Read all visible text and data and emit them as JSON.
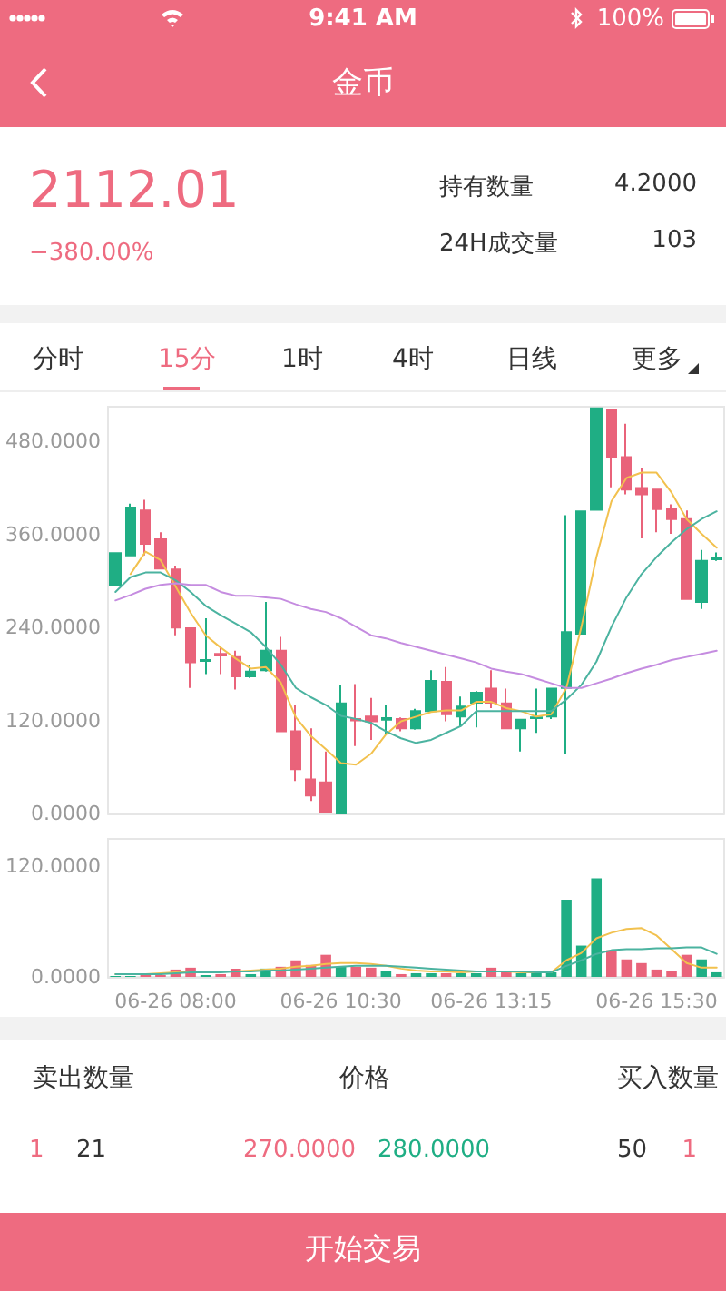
{
  "chart_data": [
    {
      "type": "other",
      "title": "金币",
      "annotations": [
        "9:41 AM",
        "100%",
        "2112.01",
        "−380.00%",
        "持有数量",
        "4.2000",
        "24H成交量",
        "103",
        "分时",
        "15分",
        "1时",
        "4时",
        "日线",
        "更多"
      ]
    },
    {
      "type": "candlestick",
      "tick_labels": "y",
      "grid": false,
      "marker": "none",
      "line_style": "solid",
      "ohlc": [
        [
          295,
          336,
          295,
          336
        ],
        [
          333,
          400,
          333,
          395
        ],
        [
          391,
          405,
          333,
          348
        ],
        [
          354,
          363,
          316,
          316
        ],
        [
          315,
          320,
          230,
          240
        ],
        [
          239,
          239,
          162,
          195
        ],
        [
          197,
          252,
          180,
          198
        ],
        [
          206,
          215,
          180,
          204
        ],
        [
          202,
          210,
          160,
          177
        ],
        [
          177,
          192,
          175,
          183
        ],
        [
          185,
          273,
          183,
          210
        ],
        [
          210,
          228,
          106,
          106
        ],
        [
          106,
          140,
          42,
          57
        ],
        [
          44,
          110,
          16,
          23
        ],
        [
          40,
          80,
          0,
          2
        ],
        [
          0,
          166,
          0,
          142
        ],
        [
          122,
          167,
          87,
          120
        ],
        [
          125,
          149,
          95,
          119
        ],
        [
          121,
          140,
          102,
          123
        ],
        [
          122,
          124,
          106,
          110
        ],
        [
          110,
          135,
          108,
          132
        ],
        [
          132,
          185,
          132,
          171
        ],
        [
          170,
          189,
          119,
          128
        ],
        [
          125,
          151,
          112,
          138
        ],
        [
          143,
          158,
          111,
          156
        ],
        [
          161,
          185,
          136,
          143
        ],
        [
          142,
          161,
          110,
          110
        ],
        [
          110,
          122,
          80,
          121
        ],
        [
          123,
          161,
          104,
          124
        ],
        [
          125,
          161,
          122,
          161
        ],
        [
          162,
          385,
          77,
          234
        ],
        [
          232,
          390,
          232,
          390
        ],
        [
          392,
          523,
          392,
          523
        ],
        [
          521,
          521,
          421,
          460
        ],
        [
          460,
          503,
          412,
          418
        ],
        [
          420,
          446,
          355,
          412
        ],
        [
          418,
          418,
          363,
          393
        ],
        [
          393,
          399,
          361,
          380
        ],
        [
          380,
          391,
          277,
          277
        ],
        [
          273,
          340,
          264,
          326
        ],
        [
          328,
          337,
          326,
          330
        ]
      ],
      "colors": [
        "#1fae84",
        "#1fae84",
        "#e9637a",
        "#e9637a",
        "#e9637a",
        "#e9637a",
        "#1fae84",
        "#e9637a",
        "#e9637a",
        "#1fae84",
        "#1fae84",
        "#e9637a",
        "#e9637a",
        "#e9637a",
        "#e9637a",
        "#1fae84",
        "#e9637a",
        "#e9637a",
        "#1fae84",
        "#e9637a",
        "#1fae84",
        "#1fae84",
        "#e9637a",
        "#1fae84",
        "#1fae84",
        "#e9637a",
        "#e9637a",
        "#1fae84",
        "#1fae84",
        "#1fae84",
        "#1fae84",
        "#1fae84",
        "#1fae84",
        "#e9637a",
        "#e9637a",
        "#e9637a",
        "#e9637a",
        "#e9637a",
        "#e9637a",
        "#1fae84",
        "#1fae84"
      ],
      "ylim": [
        0,
        525
      ],
      "yticks": [
        {
          "value": 0,
          "label": "0.0000"
        },
        {
          "value": 120,
          "label": "120.0000"
        },
        {
          "value": 240,
          "label": "240.0000"
        },
        {
          "value": 360,
          "label": "360.0000"
        },
        {
          "value": 480,
          "label": "480.0000"
        }
      ],
      "series": [
        {
          "type": "line",
          "color": "#f2c14e",
          "values": [
            null,
            309,
            338,
            327,
            293,
            259,
            230,
            214,
            200,
            187,
            189,
            169,
            124,
            100,
            83,
            65,
            63,
            77,
            102,
            119,
            125,
            131,
            133,
            133,
            144,
            144,
            136,
            132,
            125,
            128,
            162,
            241,
            331,
            403,
            433,
            440,
            440,
            414,
            380,
            361,
            343
          ]
        },
        {
          "type": "line",
          "color": "#4bb3a0",
          "values": [
            286,
            305,
            311,
            311,
            301,
            286,
            268,
            256,
            245,
            234,
            215,
            192,
            162,
            150,
            140,
            126,
            122,
            117,
            106,
            97,
            91,
            95,
            104,
            113,
            132,
            132,
            132,
            132,
            132,
            132,
            147,
            166,
            196,
            241,
            279,
            309,
            331,
            350,
            367,
            380,
            390
          ]
        },
        {
          "type": "line",
          "color": "#c58ce0",
          "values": [
            275,
            282,
            290,
            295,
            297,
            295,
            295,
            286,
            281,
            281,
            279,
            277,
            270,
            264,
            260,
            252,
            241,
            230,
            226,
            220,
            215,
            210,
            205,
            200,
            195,
            187,
            183,
            180,
            174,
            168,
            162,
            162,
            168,
            174,
            181,
            187,
            192,
            198,
            202,
            206,
            210
          ]
        }
      ]
    },
    {
      "type": "bar",
      "grid": false,
      "marker": "none",
      "line_style": "solid",
      "categories": [
        null,
        null,
        null,
        null,
        "06-26 08:00",
        null,
        null,
        null,
        null,
        null,
        null,
        null,
        null,
        null,
        null,
        "06-26 10:30",
        null,
        null,
        null,
        null,
        null,
        null,
        null,
        null,
        null,
        "06-26 13:15",
        null,
        null,
        null,
        null,
        null,
        null,
        null,
        null,
        null,
        null,
        "06-26 15:30",
        null,
        null,
        null,
        null
      ],
      "values": [
        1,
        1,
        2,
        2,
        8,
        10,
        2,
        3,
        9,
        3,
        9,
        11,
        18,
        13,
        24,
        11,
        11,
        10,
        6,
        3,
        4,
        4,
        4,
        4,
        4,
        10,
        5,
        4,
        5,
        5,
        84,
        34,
        107,
        29,
        19,
        15,
        8,
        6,
        24,
        19,
        5
      ],
      "colors": [
        "#1fae84",
        "#1fae84",
        "#e9637a",
        "#e9637a",
        "#e9637a",
        "#e9637a",
        "#1fae84",
        "#e9637a",
        "#e9637a",
        "#1fae84",
        "#1fae84",
        "#e9637a",
        "#e9637a",
        "#e9637a",
        "#e9637a",
        "#1fae84",
        "#e9637a",
        "#e9637a",
        "#1fae84",
        "#e9637a",
        "#1fae84",
        "#1fae84",
        "#e9637a",
        "#1fae84",
        "#1fae84",
        "#e9637a",
        "#e9637a",
        "#1fae84",
        "#1fae84",
        "#1fae84",
        "#1fae84",
        "#1fae84",
        "#1fae84",
        "#e9637a",
        "#e9637a",
        "#e9637a",
        "#e9637a",
        "#e9637a",
        "#e9637a",
        "#1fae84",
        "#1fae84"
      ],
      "ylim": [
        0,
        150
      ],
      "yticks": [
        {
          "value": 0,
          "label": "0.0000"
        },
        {
          "value": 120,
          "label": "120.0000"
        }
      ],
      "series": [
        {
          "type": "line",
          "color": "#f2c14e",
          "values": [
            3,
            3,
            3,
            4,
            5,
            6,
            6,
            6,
            6,
            7,
            8,
            9,
            11,
            12,
            14,
            15,
            15,
            14,
            12,
            9,
            7,
            6,
            6,
            5,
            6,
            6,
            6,
            5,
            5,
            5,
            18,
            26,
            42,
            48,
            52,
            53,
            45,
            30,
            15,
            10,
            10
          ]
        },
        {
          "type": "line",
          "color": "#4bb3a0",
          "values": [
            3,
            3,
            3,
            3,
            4,
            5,
            5,
            5,
            6,
            6,
            7,
            7,
            8,
            9,
            10,
            11,
            12,
            12,
            12,
            11,
            10,
            9,
            8,
            7,
            6,
            6,
            6,
            6,
            5,
            5,
            12,
            18,
            25,
            29,
            30,
            30,
            31,
            31,
            32,
            32,
            25
          ]
        }
      ]
    },
    {
      "type": "other",
      "annotations": [
        "卖出数量",
        "价格",
        "买入数量",
        "1",
        "21",
        "270.0000",
        "280.0000",
        "50",
        "1",
        "开始交易"
      ]
    }
  ]
}
